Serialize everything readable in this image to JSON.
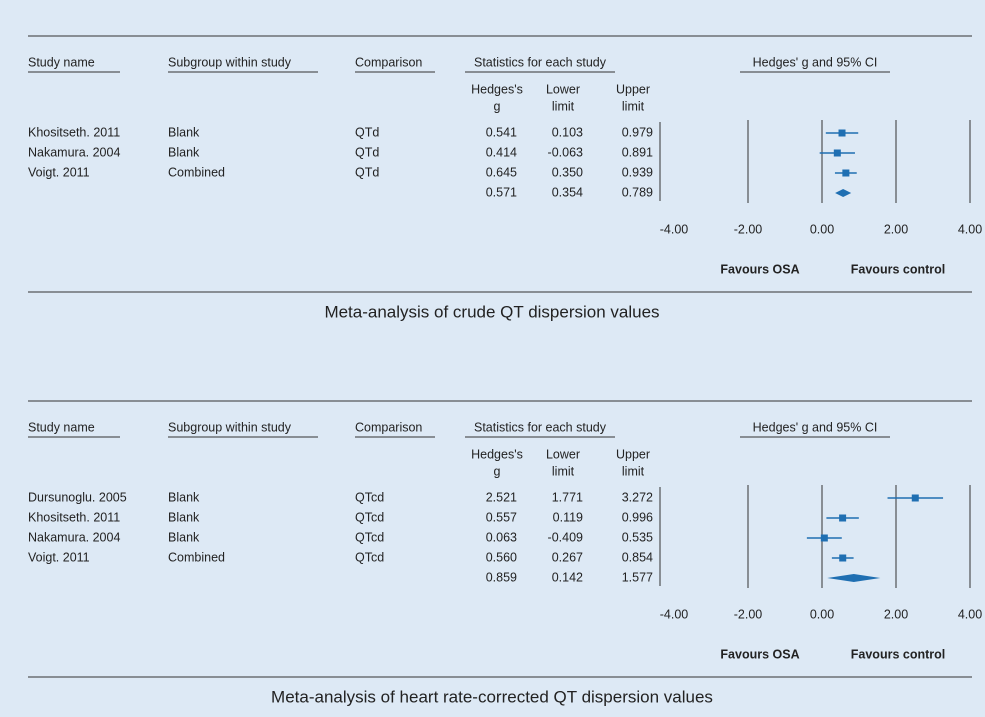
{
  "chart_data": [
    {
      "type": "forest",
      "title": "Meta-analysis of crude QT dispersion values",
      "headers": [
        "Study name",
        "Subgroup within study",
        "Comparison",
        "Statistics for each study",
        "Hedges' g and 95% CI"
      ],
      "stat_headers": [
        [
          "Hedges's",
          "g"
        ],
        [
          "Lower",
          "limit"
        ],
        [
          "Upper",
          "limit"
        ]
      ],
      "categories": [
        "Khositseth. 2011",
        "Nakamura. 2004",
        "Voigt. 2011",
        null
      ],
      "subgroups": [
        "Blank",
        "Blank",
        "Combined",
        null
      ],
      "comparisons": [
        "QTd",
        "QTd",
        "QTd",
        null
      ],
      "values": [
        0.541,
        0.414,
        0.645,
        0.571
      ],
      "value_labels": [
        "0.541",
        "0.414",
        "0.645",
        "0.571"
      ],
      "lower": [
        0.103,
        -0.063,
        0.35,
        0.354
      ],
      "lower_labels": [
        "0.103",
        "-0.063",
        "0.350",
        "0.354"
      ],
      "upper": [
        0.979,
        0.891,
        0.939,
        0.789
      ],
      "upper_labels": [
        "0.979",
        "0.891",
        "0.939",
        "0.789"
      ],
      "xlim": [
        -4,
        4
      ],
      "xticks": [
        {
          "value": -4,
          "label": "-4.00"
        },
        {
          "value": -2,
          "label": "-2.00"
        },
        {
          "value": 0,
          "label": "0.00"
        },
        {
          "value": 2,
          "label": "2.00"
        },
        {
          "value": 4,
          "label": "4.00"
        }
      ],
      "axis_labels": [
        "Favours OSA",
        "Favours control"
      ],
      "color": "#1f6fb2"
    },
    {
      "type": "forest",
      "title": "Meta-analysis of heart rate-corrected QT dispersion values",
      "headers": [
        "Study name",
        "Subgroup within study",
        "Comparison",
        "Statistics for each study",
        "Hedges' g and 95% CI"
      ],
      "stat_headers": [
        [
          "Hedges's",
          "g"
        ],
        [
          "Lower",
          "limit"
        ],
        [
          "Upper",
          "limit"
        ]
      ],
      "categories": [
        "Dursunoglu. 2005",
        "Khositseth. 2011",
        "Nakamura. 2004",
        "Voigt. 2011",
        null
      ],
      "subgroups": [
        "Blank",
        "Blank",
        "Blank",
        "Combined",
        null
      ],
      "comparisons": [
        "QTcd",
        "QTcd",
        "QTcd",
        "QTcd",
        null
      ],
      "values": [
        2.521,
        0.557,
        0.063,
        0.56,
        0.859
      ],
      "value_labels": [
        "2.521",
        "0.557",
        "0.063",
        "0.560",
        "0.859"
      ],
      "lower": [
        1.771,
        0.119,
        -0.409,
        0.267,
        0.142
      ],
      "lower_labels": [
        "1.771",
        "0.119",
        "-0.409",
        "0.267",
        "0.142"
      ],
      "upper": [
        3.272,
        0.996,
        0.535,
        0.854,
        1.577
      ],
      "upper_labels": [
        "3.272",
        "0.996",
        "0.535",
        "0.854",
        "1.577"
      ],
      "xlim": [
        -4,
        4
      ],
      "xticks": [
        {
          "value": -4,
          "label": "-4.00"
        },
        {
          "value": -2,
          "label": "-2.00"
        },
        {
          "value": 0,
          "label": "0.00"
        },
        {
          "value": 2,
          "label": "2.00"
        },
        {
          "value": 4,
          "label": "4.00"
        }
      ],
      "axis_labels": [
        "Favours OSA",
        "Favours control"
      ],
      "color": "#1f6fb2"
    }
  ]
}
